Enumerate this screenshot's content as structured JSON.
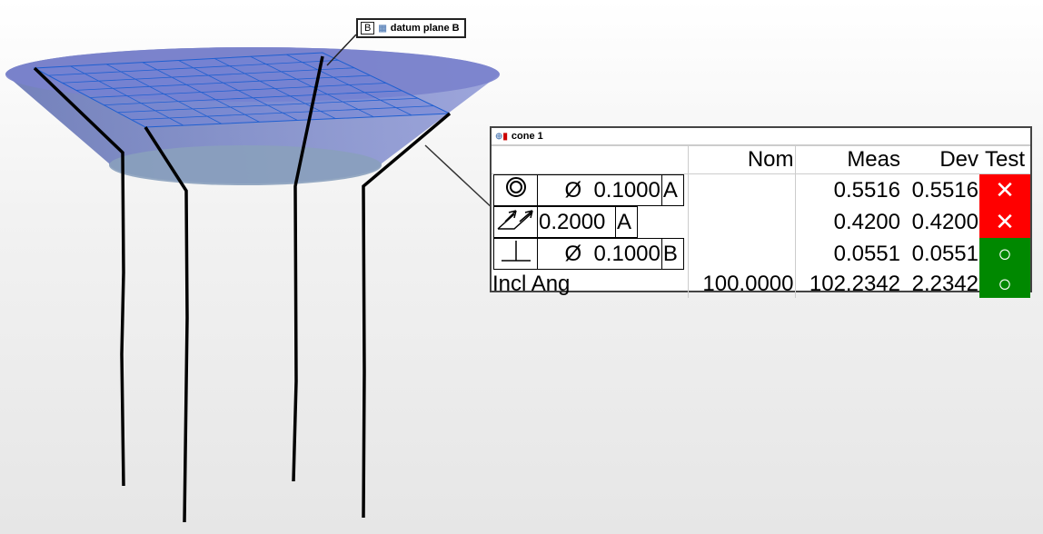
{
  "datum_label": {
    "letter": "B",
    "icon": "plane-feature-icon",
    "text": "datum plane B"
  },
  "panel": {
    "title": "cone 1",
    "icon": "cone-feature-icon",
    "headers": [
      "",
      "Nom",
      "Meas",
      "Dev",
      "Test"
    ],
    "rows": [
      {
        "symbol": "concentricity-icon",
        "dia": "Ø",
        "tol": "0.1000",
        "datum": "A",
        "nom": "",
        "meas": "0.5516",
        "dev": "0.5516",
        "test": "fail"
      },
      {
        "symbol": "total-runout-icon",
        "dia": "",
        "tol": "0.2000",
        "datum": "A",
        "nom": "",
        "meas": "0.4200",
        "dev": "0.4200",
        "test": "fail"
      },
      {
        "symbol": "perpendicularity-icon",
        "dia": "Ø",
        "tol": "0.1000",
        "datum": "B",
        "nom": "",
        "meas": "0.0551",
        "dev": "0.0551",
        "test": "pass"
      },
      {
        "label": "Incl Ang",
        "nom": "100.0000",
        "meas": "102.2342",
        "dev": "2.2342",
        "test": "pass"
      }
    ],
    "fail_glyph": "✕",
    "pass_glyph": "○",
    "colors": {
      "fail": "#ff0000",
      "pass": "#008000"
    }
  }
}
